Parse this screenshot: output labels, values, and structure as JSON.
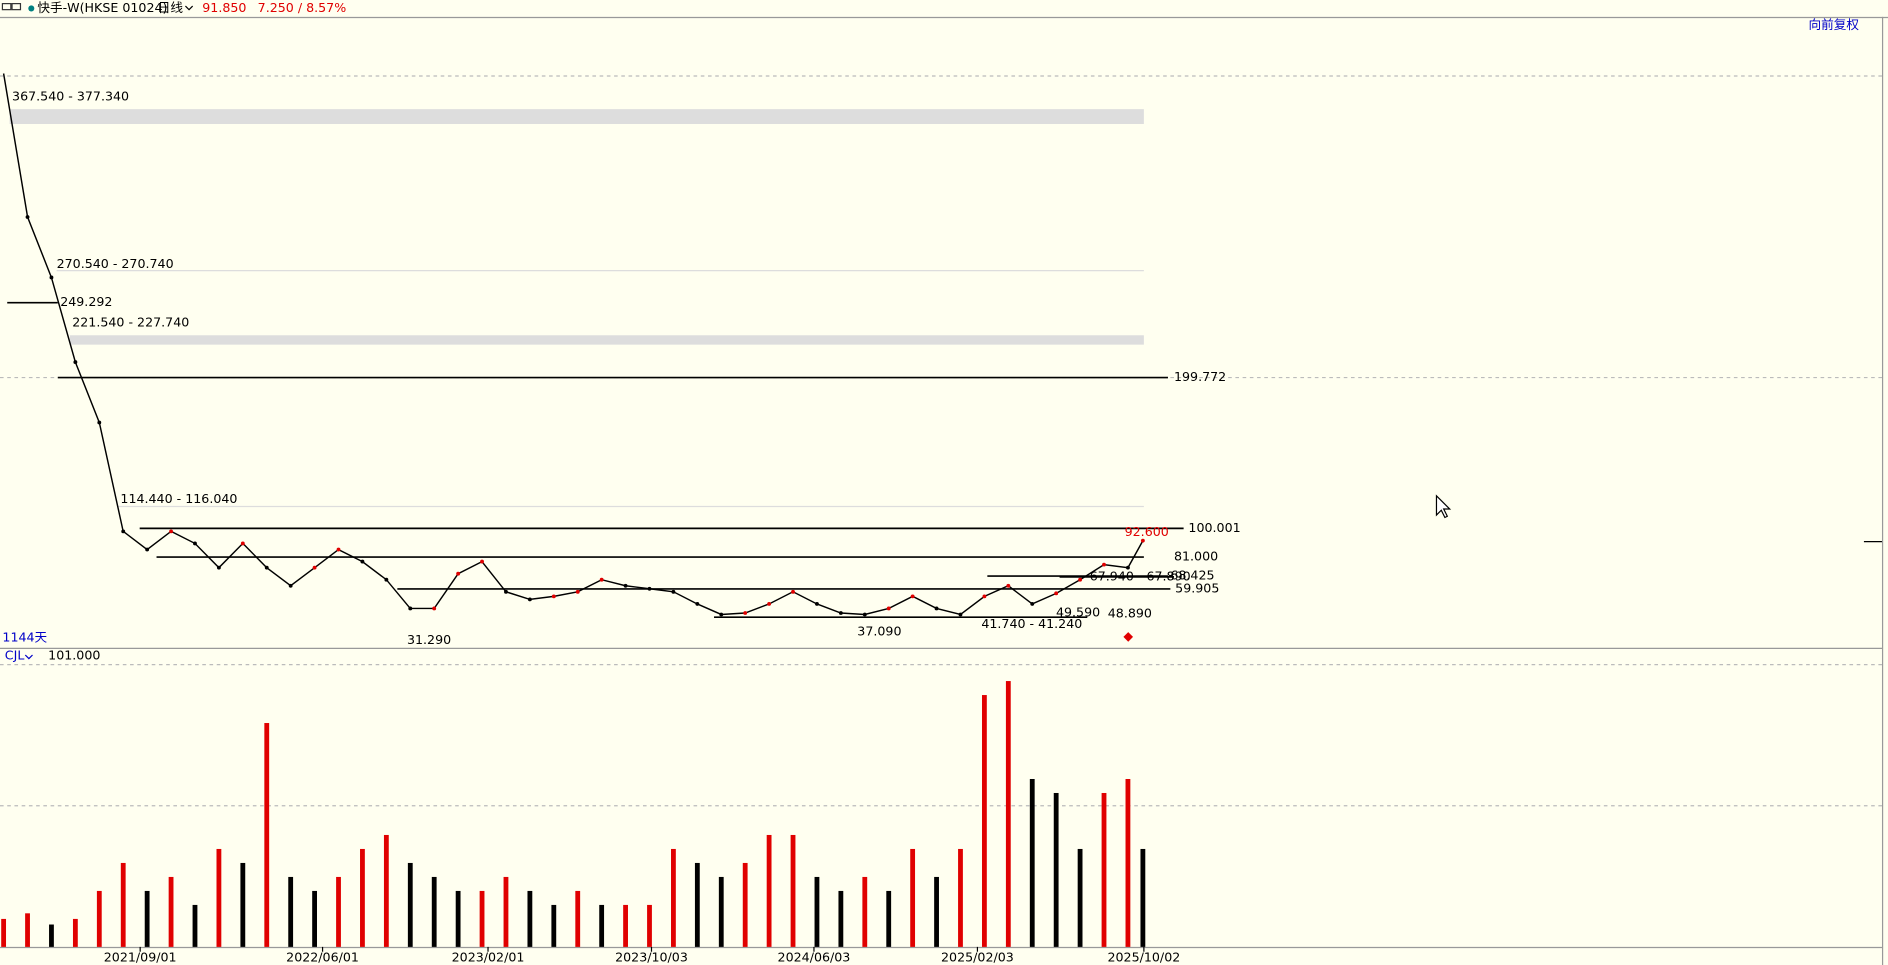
{
  "header": {
    "symbol": "快手-W(HKSE 01024)",
    "period": "日线",
    "last": "91.850",
    "change": "7.250 / 8.57%",
    "adjust": "向前复权",
    "days": "1144天",
    "indicator": "CJL",
    "indicator_value": "101.000"
  },
  "chart_data": [
    {
      "type": "line",
      "name": "price",
      "color": "#000000",
      "x": [
        0,
        24,
        48,
        72,
        96,
        120,
        144,
        168,
        192,
        216,
        240,
        264,
        288,
        312,
        336,
        360,
        384,
        408,
        432,
        456,
        480,
        504,
        528,
        552,
        576,
        600,
        624,
        648,
        672,
        696,
        720,
        744,
        768,
        792,
        816,
        840,
        864,
        888,
        912,
        936,
        960,
        984,
        1008,
        1032,
        1056,
        1080,
        1104,
        1128,
        1143
      ],
      "values": [
        401,
        306,
        266,
        210,
        170,
        98,
        86,
        98,
        90,
        74,
        90,
        74,
        62,
        74,
        86,
        78,
        66,
        47,
        47,
        70,
        78,
        58,
        53,
        55,
        58,
        66,
        62,
        60,
        58,
        50,
        43,
        44,
        50,
        58,
        50,
        44,
        43,
        47,
        55,
        47,
        43,
        55,
        62,
        50,
        57,
        66,
        76,
        74,
        91.85
      ],
      "xlim": [
        0,
        1144
      ],
      "ylim": [
        21,
        437.6
      ],
      "xticks": [
        {
          "value": 137,
          "label": "2021/09/01"
        },
        {
          "value": 320,
          "label": "2022/06/01"
        },
        {
          "value": 486,
          "label": "2023/02/01"
        },
        {
          "value": 650,
          "label": "2023/10/03"
        },
        {
          "value": 813,
          "label": "2024/06/03"
        },
        {
          "value": 977,
          "label": "2025/02/03"
        },
        {
          "value": 1144,
          "label": "2025/10/02"
        }
      ],
      "levels": [
        {
          "kind": "band",
          "label": "367.540 - 377.340",
          "values": [
            367.54,
            377.34
          ]
        },
        {
          "kind": "line",
          "label": "270.540 - 270.740",
          "values": [
            270.54,
            270.74
          ]
        },
        {
          "kind": "line",
          "label": "249.292",
          "values": [
            249.292
          ]
        },
        {
          "kind": "band",
          "label": "221.540 - 227.740",
          "values": [
            221.54,
            227.74
          ]
        },
        {
          "kind": "line",
          "label": "199.772",
          "values": [
            199.772
          ]
        },
        {
          "kind": "line",
          "label": "114.440 - 116.040",
          "values": [
            114.44,
            116.04
          ]
        },
        {
          "kind": "line",
          "label": "100.001",
          "values": [
            100.001
          ]
        },
        {
          "kind": "line",
          "label": "81.000",
          "values": [
            81.0
          ]
        },
        {
          "kind": "line",
          "label": "68.425",
          "values": [
            68.425
          ]
        },
        {
          "kind": "line",
          "label": "67.940 - 67.890",
          "values": [
            67.94,
            67.89
          ]
        },
        {
          "kind": "line",
          "label": "59.905",
          "values": [
            59.905
          ]
        },
        {
          "kind": "note",
          "label": "49.590",
          "values": [
            49.59
          ]
        },
        {
          "kind": "note",
          "label": "48.890",
          "values": [
            48.89
          ]
        },
        {
          "kind": "line",
          "label": "41.740 - 41.240",
          "values": [
            41.74,
            41.24
          ]
        },
        {
          "kind": "note",
          "label": "37.090",
          "values": [
            37.09
          ]
        },
        {
          "kind": "note",
          "label": "31.290",
          "values": [
            31.29
          ]
        },
        {
          "kind": "note",
          "label": "92.600",
          "values": [
            92.6
          ]
        }
      ]
    },
    {
      "type": "bar",
      "name": "volume",
      "up_color": "#e00000",
      "down_color": "#000000",
      "x": [
        0,
        24,
        48,
        72,
        96,
        120,
        144,
        168,
        192,
        216,
        240,
        264,
        288,
        312,
        336,
        360,
        384,
        408,
        432,
        456,
        480,
        504,
        528,
        552,
        576,
        600,
        624,
        648,
        672,
        696,
        720,
        744,
        768,
        792,
        816,
        840,
        864,
        888,
        912,
        936,
        960,
        984,
        1008,
        1032,
        1056,
        1080,
        1104,
        1128,
        1143
      ],
      "values": [
        10,
        12,
        8,
        10,
        20,
        30,
        20,
        25,
        15,
        35,
        30,
        80,
        25,
        20,
        25,
        35,
        40,
        30,
        25,
        20,
        20,
        25,
        20,
        15,
        20,
        15,
        15,
        15,
        35,
        30,
        25,
        30,
        40,
        40,
        25,
        20,
        25,
        20,
        35,
        25,
        35,
        90,
        95,
        60,
        55,
        35,
        55,
        60,
        35
      ],
      "xlim": [
        0,
        1144
      ],
      "ylim": [
        0,
        100
      ]
    }
  ]
}
